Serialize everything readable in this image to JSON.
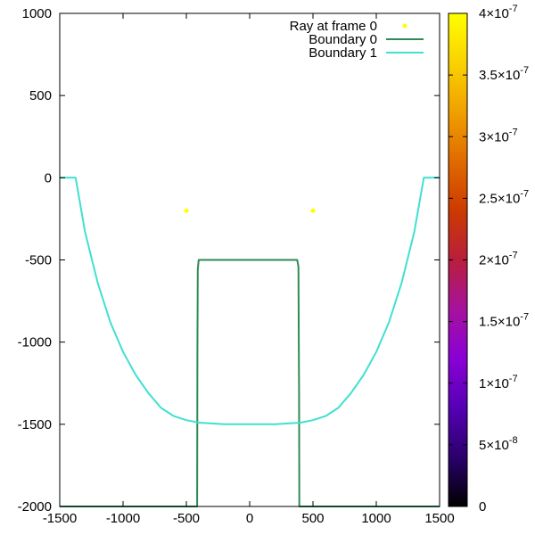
{
  "chart_data": {
    "type": "line",
    "title": "",
    "xlabel": "",
    "ylabel": "",
    "xlim": [
      -1500,
      1500
    ],
    "ylim": [
      -2000,
      1000
    ],
    "x_ticks": [
      -1500,
      -1000,
      -500,
      0,
      500,
      1000,
      1500
    ],
    "x_tick_labels": [
      "-1500",
      "-1000",
      "-500",
      "0",
      "500",
      "1000",
      "1500"
    ],
    "y_ticks": [
      1000,
      500,
      0,
      -500,
      -1000,
      -1500,
      -2000
    ],
    "y_tick_labels": [
      "1000",
      "500",
      "0",
      "-500",
      "-1000",
      "-1500",
      "-2000"
    ],
    "grid": false,
    "legend_position": "top-right",
    "series": [
      {
        "name": "Ray at frame 0",
        "type": "scatter",
        "color": "#ffff00",
        "points": [
          [
            -500,
            -200
          ],
          [
            500,
            -200
          ]
        ]
      },
      {
        "name": "Boundary 0",
        "type": "line",
        "color": "#2e8b57",
        "points": [
          [
            -1500,
            -2000
          ],
          [
            -415,
            -2000
          ],
          [
            -413,
            -1060
          ],
          [
            -410,
            -560
          ],
          [
            -403,
            -500
          ],
          [
            0,
            -500
          ],
          [
            375,
            -500
          ],
          [
            385,
            -540
          ],
          [
            388,
            -1000
          ],
          [
            390,
            -1300
          ],
          [
            392,
            -2000
          ],
          [
            1500,
            -2000
          ]
        ]
      },
      {
        "name": "Boundary 1",
        "type": "line",
        "color": "#40e0d0",
        "points": [
          [
            -1500,
            0
          ],
          [
            -1375,
            0
          ],
          [
            -1300,
            -330
          ],
          [
            -1200,
            -640
          ],
          [
            -1100,
            -880
          ],
          [
            -1000,
            -1060
          ],
          [
            -900,
            -1200
          ],
          [
            -800,
            -1310
          ],
          [
            -700,
            -1400
          ],
          [
            -600,
            -1450
          ],
          [
            -500,
            -1475
          ],
          [
            -400,
            -1490
          ],
          [
            -200,
            -1500
          ],
          [
            0,
            -1500
          ],
          [
            200,
            -1500
          ],
          [
            400,
            -1490
          ],
          [
            500,
            -1475
          ],
          [
            600,
            -1450
          ],
          [
            700,
            -1400
          ],
          [
            800,
            -1310
          ],
          [
            900,
            -1200
          ],
          [
            1000,
            -1060
          ],
          [
            1100,
            -880
          ],
          [
            1200,
            -640
          ],
          [
            1300,
            -330
          ],
          [
            1375,
            0
          ],
          [
            1500,
            0
          ]
        ]
      }
    ],
    "colorbar": {
      "min": 0,
      "max": 4e-07,
      "palette": [
        "#000000",
        "#2b006b",
        "#5500b5",
        "#8a00d6",
        "#a6129c",
        "#b91e3c",
        "#cc3a00",
        "#e06a00",
        "#f0a000",
        "#fad200",
        "#ffff00"
      ],
      "ticks": [
        0,
        5e-08,
        1e-07,
        1.5e-07,
        2e-07,
        2.5e-07,
        3e-07,
        3.5e-07,
        4e-07
      ],
      "tick_labels": [
        {
          "mantissa": "0",
          "exponent": ""
        },
        {
          "mantissa": "5×10",
          "exponent": "-8"
        },
        {
          "mantissa": "1×10",
          "exponent": "-7"
        },
        {
          "mantissa": "1.5×10",
          "exponent": "-7"
        },
        {
          "mantissa": "2×10",
          "exponent": "-7"
        },
        {
          "mantissa": "2.5×10",
          "exponent": "-7"
        },
        {
          "mantissa": "3×10",
          "exponent": "-7"
        },
        {
          "mantissa": "3.5×10",
          "exponent": "-7"
        },
        {
          "mantissa": "4×10",
          "exponent": "-7"
        }
      ]
    }
  }
}
